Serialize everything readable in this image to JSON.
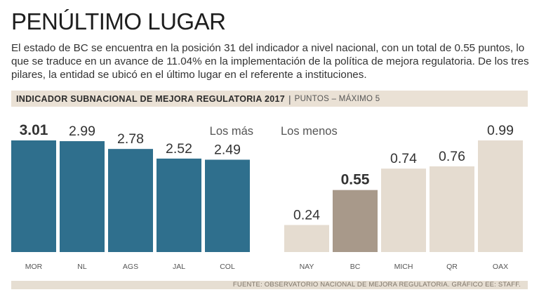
{
  "header": {
    "headline": "PENÚLTIMO LUGAR",
    "intro": "El estado de BC se encuentra en la posición 31 del indicador a nivel nacional, con un total de 0.55 puntos, lo que se traduce en un avance de 11.04% en la implementación de la política de mejora regulatoria. De los tres pilares, la entidad se ubicó en el último lugar en el referente a instituciones."
  },
  "banner": {
    "title": "INDICADOR SUBNACIONAL DE MEJORA REGULATORIA 2017",
    "separator": "|",
    "units": "PUNTOS – MÁXIMO 5"
  },
  "colors": {
    "top_bar": "#2f6f8d",
    "bottom_bar": "#e5dcd0",
    "highlight_bar": "#a8998a",
    "value_text": "#333333",
    "axis_text": "#555555"
  },
  "chart_data": [
    {
      "type": "bar",
      "title": "Los más",
      "categories": [
        "MOR",
        "NL",
        "AGS",
        "JAL",
        "COL"
      ],
      "values": [
        3.01,
        2.99,
        2.78,
        2.52,
        2.49
      ],
      "labels": [
        "3.01",
        "2.99",
        "2.78",
        "2.52",
        "2.49"
      ],
      "highlight": "MOR",
      "ylim": [
        0,
        3.01
      ]
    },
    {
      "type": "bar",
      "title": "Los menos",
      "categories": [
        "NAY",
        "BC",
        "MICH",
        "QR",
        "OAX"
      ],
      "values": [
        0.24,
        0.55,
        0.74,
        0.76,
        0.99
      ],
      "labels": [
        "0.24",
        "0.55",
        "0.74",
        "0.76",
        "0.99"
      ],
      "highlight": "BC",
      "ylim": [
        0,
        0.99
      ]
    }
  ],
  "footer": {
    "source": "FUENTE: OBSERVATORIO NACIONAL DE MEJORA REGULATORIA.  GRÁFICO EE: STAFF."
  }
}
